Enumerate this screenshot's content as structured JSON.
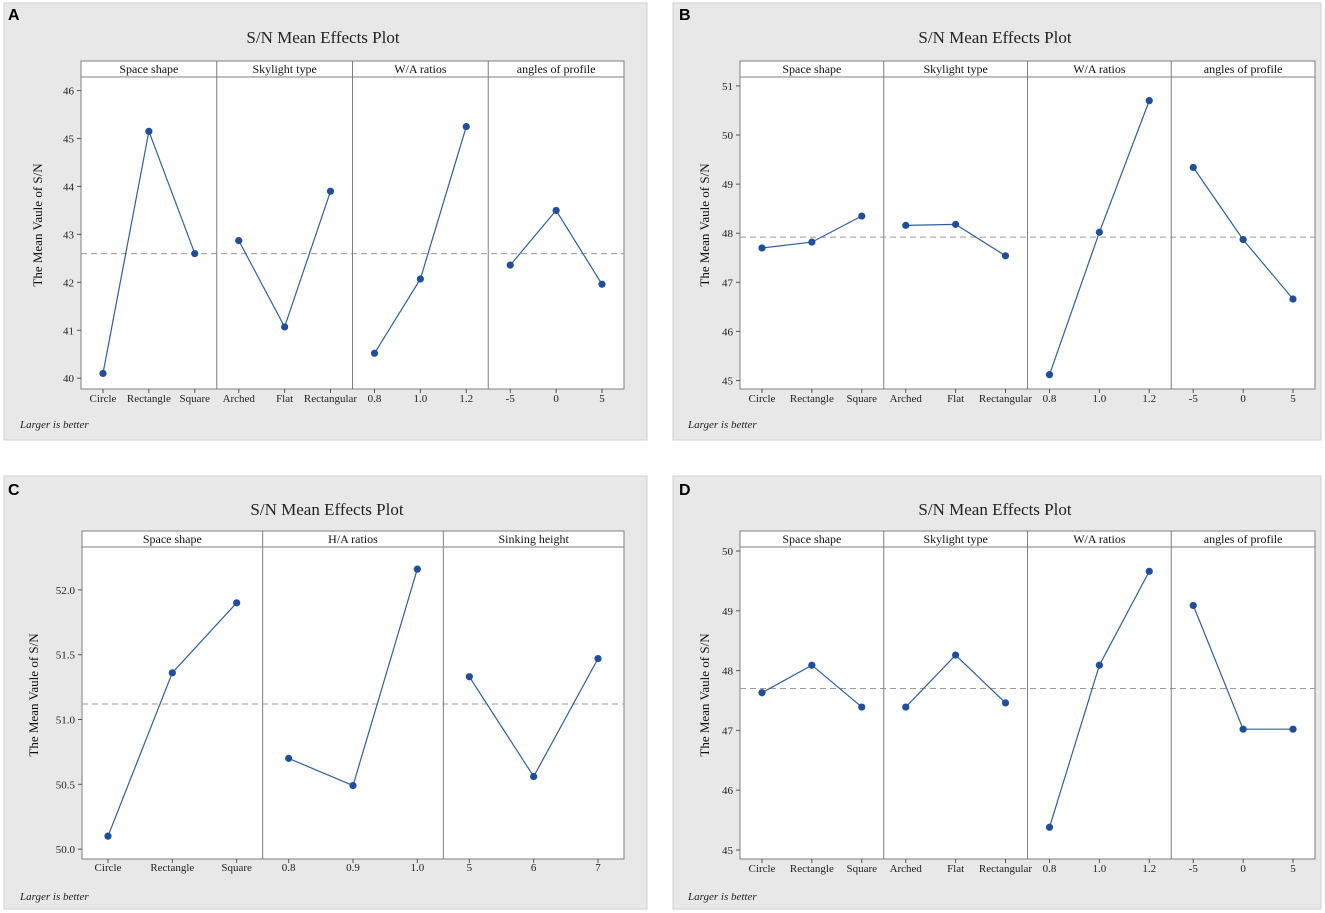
{
  "chart_data": [
    {
      "panel": "A",
      "type": "line",
      "title": "S/N Mean Effects Plot",
      "ylabel": "The Mean Vaule of S/N",
      "footnote": "Larger is better",
      "ylim": [
        39.9,
        46.2
      ],
      "yticks": [
        40,
        41,
        42,
        43,
        44,
        45,
        46
      ],
      "ytick_labels": [
        "40",
        "41",
        "42",
        "43",
        "44",
        "45",
        "46"
      ],
      "mean": 42.6,
      "facets": [
        {
          "name": "Space shape",
          "categories": [
            "Circle",
            "Rectangle",
            "Square"
          ],
          "values": [
            40.1,
            45.15,
            42.6
          ]
        },
        {
          "name": "Skylight type",
          "categories": [
            "Arched",
            "Flat",
            "Rectangular"
          ],
          "values": [
            42.87,
            41.07,
            43.9
          ]
        },
        {
          "name": "W/A ratios",
          "categories": [
            "0.8",
            "1.0",
            "1.2"
          ],
          "values": [
            40.52,
            42.07,
            45.25
          ]
        },
        {
          "name": "angles of profile",
          "categories": [
            "-5",
            "0",
            "5"
          ],
          "values": [
            42.36,
            43.5,
            41.96
          ]
        }
      ]
    },
    {
      "panel": "B",
      "type": "line",
      "title": "S/N Mean Effects Plot",
      "ylabel": "The Mean Vaule of S/N",
      "footnote": "Larger is better",
      "ylim": [
        44.95,
        51.1
      ],
      "yticks": [
        45,
        46,
        47,
        48,
        49,
        50,
        51
      ],
      "ytick_labels": [
        "45",
        "46",
        "47",
        "48",
        "49",
        "50",
        "51"
      ],
      "mean": 47.92,
      "facets": [
        {
          "name": "Space shape",
          "categories": [
            "Circle",
            "Rectangle",
            "Square"
          ],
          "values": [
            47.7,
            47.82,
            48.35
          ]
        },
        {
          "name": "Skylight type",
          "categories": [
            "Arched",
            "Flat",
            "Rectangular"
          ],
          "values": [
            48.16,
            48.18,
            47.54
          ]
        },
        {
          "name": "W/A ratios",
          "categories": [
            "0.8",
            "1.0",
            "1.2"
          ],
          "values": [
            45.12,
            48.02,
            50.7
          ]
        },
        {
          "name": "angles of profile",
          "categories": [
            "-5",
            "0",
            "5"
          ],
          "values": [
            49.34,
            47.87,
            46.66
          ]
        }
      ]
    },
    {
      "panel": "C",
      "type": "line",
      "title": "S/N Mean Effects Plot",
      "ylabel": "The Mean Vaule of S/N",
      "footnote": "Larger is better",
      "ylim": [
        49.97,
        52.3
      ],
      "yticks": [
        50.0,
        50.5,
        51.0,
        51.5,
        52.0
      ],
      "ytick_labels": [
        "50.0",
        "50.5",
        "51.0",
        "51.5",
        "52.0"
      ],
      "mean": 51.12,
      "facets": [
        {
          "name": "Space shape",
          "categories": [
            "Circle",
            "Rectangle",
            "Square"
          ],
          "values": [
            50.1,
            51.36,
            51.9
          ]
        },
        {
          "name": "H/A ratios",
          "categories": [
            "0.8",
            "0.9",
            "1.0"
          ],
          "values": [
            50.7,
            50.49,
            52.16
          ]
        },
        {
          "name": "Sinking height",
          "categories": [
            "5",
            "6",
            "7"
          ],
          "values": [
            51.33,
            50.56,
            51.47
          ]
        }
      ]
    },
    {
      "panel": "D",
      "type": "line",
      "title": "S/N Mean Effects Plot",
      "ylabel": "The Mean Vaule of S/N",
      "footnote": "Larger is better",
      "ylim": [
        44.95,
        50.0
      ],
      "yticks": [
        45,
        46,
        47,
        48,
        49,
        50
      ],
      "ytick_labels": [
        "45",
        "46",
        "47",
        "48",
        "49",
        "50"
      ],
      "mean": 47.7,
      "facets": [
        {
          "name": "Space shape",
          "categories": [
            "Circle",
            "Rectangle",
            "Square"
          ],
          "values": [
            47.63,
            48.09,
            47.39
          ]
        },
        {
          "name": "Skylight type",
          "categories": [
            "Arched",
            "Flat",
            "Rectangular"
          ],
          "values": [
            47.39,
            48.26,
            47.46
          ]
        },
        {
          "name": "W/A ratios",
          "categories": [
            "0.8",
            "1.0",
            "1.2"
          ],
          "values": [
            45.38,
            48.09,
            49.66
          ]
        },
        {
          "name": "angles of profile",
          "categories": [
            "-5",
            "0",
            "5"
          ],
          "values": [
            49.09,
            47.02,
            47.02
          ]
        }
      ]
    }
  ]
}
